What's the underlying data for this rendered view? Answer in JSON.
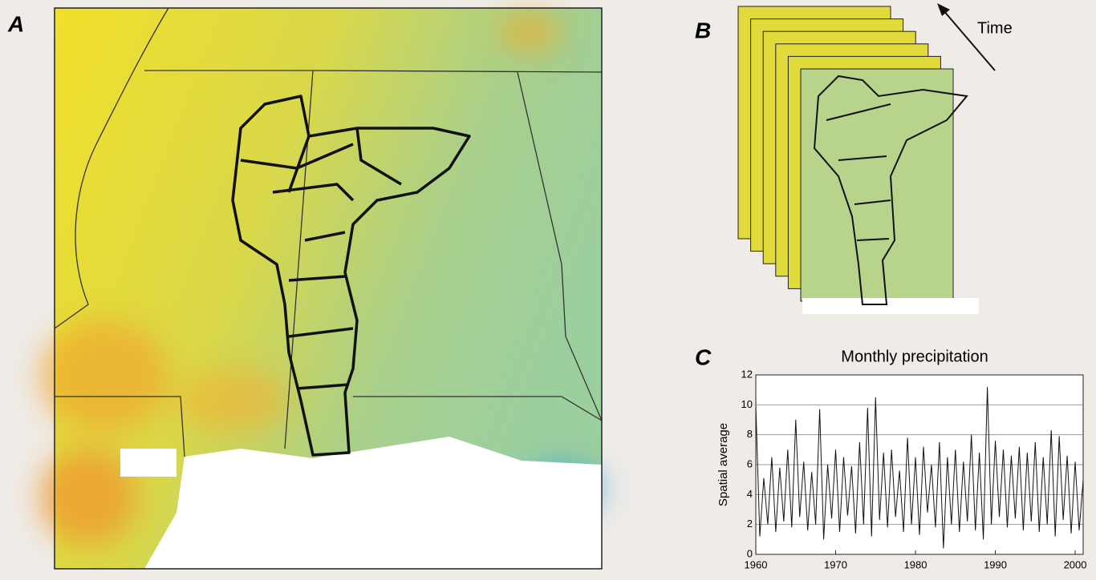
{
  "panels": {
    "a": "A",
    "b": "B",
    "c": "C"
  },
  "time_label": "Time",
  "chart_data": {
    "type": "line",
    "title": "Monthly precipitation",
    "y_label": "Spatial average",
    "color": "#111111",
    "x": [
      1960,
      1960.5,
      1961,
      1961.5,
      1962,
      1962.5,
      1963,
      1963.5,
      1964,
      1964.5,
      1965,
      1965.5,
      1966,
      1966.5,
      1967,
      1967.5,
      1968,
      1968.5,
      1969,
      1969.5,
      1970,
      1970.5,
      1971,
      1971.5,
      1972,
      1972.5,
      1973,
      1973.5,
      1974,
      1974.5,
      1975,
      1975.5,
      1976,
      1976.5,
      1977,
      1977.5,
      1978,
      1978.5,
      1979,
      1979.5,
      1980,
      1980.5,
      1981,
      1981.5,
      1982,
      1982.5,
      1983,
      1983.5,
      1984,
      1984.5,
      1985,
      1985.5,
      1986,
      1986.5,
      1987,
      1987.5,
      1988,
      1988.5,
      1989,
      1989.5,
      1990,
      1990.5,
      1991,
      1991.5,
      1992,
      1992.5,
      1993,
      1993.5,
      1994,
      1994.5,
      1995,
      1995.5,
      1996,
      1996.5,
      1997,
      1997.5,
      1998,
      1998.5,
      1999,
      1999.5,
      2000,
      2000.5,
      2001
    ],
    "values": [
      10.0,
      1.2,
      5.1,
      2.0,
      6.5,
      1.5,
      5.8,
      2.2,
      7.0,
      1.8,
      9.0,
      2.5,
      6.2,
      1.6,
      5.5,
      2.0,
      9.7,
      1.0,
      6.0,
      2.4,
      7.0,
      1.5,
      6.5,
      2.6,
      5.9,
      1.4,
      7.5,
      2.0,
      9.8,
      1.2,
      10.5,
      2.3,
      6.8,
      1.8,
      7.0,
      2.5,
      5.6,
      1.5,
      7.8,
      2.0,
      6.5,
      1.3,
      7.2,
      2.8,
      6.0,
      1.8,
      7.5,
      0.4,
      6.5,
      2.0,
      7.0,
      1.5,
      6.2,
      2.2,
      8.0,
      1.6,
      6.8,
      1.0,
      11.2,
      2.0,
      7.6,
      2.5,
      7.0,
      1.8,
      6.6,
      2.4,
      7.2,
      1.6,
      6.8,
      2.2,
      7.5,
      1.5,
      6.5,
      2.0,
      8.3,
      1.2,
      7.9,
      2.3,
      6.6,
      1.4,
      6.2,
      1.6,
      5.0
    ],
    "xlim": [
      1960,
      2001
    ],
    "xticks": [
      1960,
      1970,
      1980,
      1990,
      2000
    ],
    "ylim": [
      0,
      12
    ],
    "yticks": [
      0,
      2,
      4,
      6,
      8,
      10,
      12
    ],
    "grid": true
  }
}
